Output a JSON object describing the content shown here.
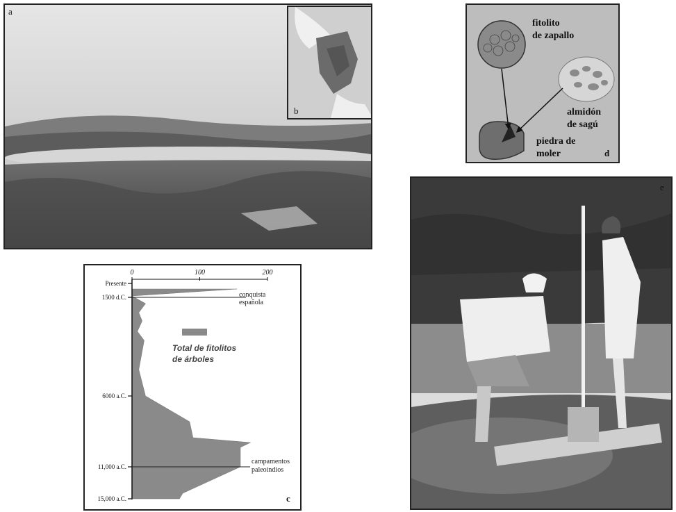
{
  "panel_a": {
    "letter": "a"
  },
  "panel_b": {
    "letter": "b"
  },
  "panel_d": {
    "letter": "d",
    "phytolith_label_line1": "fitolito",
    "phytolith_label_line2": "de zapallo",
    "starch_label_line1": "almidón",
    "starch_label_line2": "de sagú",
    "stone_label_line1": "piedra de",
    "stone_label_line2": "moler"
  },
  "panel_e": {
    "letter": "e"
  },
  "panel_c": {
    "letter": "c",
    "legend": "Total de fitolitos de árboles",
    "legend_line1": "Total de fitolitos",
    "legend_line2": "de árboles",
    "annotation_top_line1": "conquista",
    "annotation_top_line2": "española",
    "annotation_bottom_line1": "campamentos",
    "annotation_bottom_line2": "paleoindios"
  },
  "chart_data": {
    "type": "area",
    "title": "",
    "legend": [
      "Total de fitolitos de árboles"
    ],
    "x_ticks": [
      0,
      100,
      200
    ],
    "xlim": [
      0,
      200
    ],
    "y_ticks": [
      "Presente",
      "1500 d.C.",
      "6000 a.C.",
      "11,000 a.C.",
      "15,000 a.C."
    ],
    "orientation": "vertical-depth",
    "profile": [
      {
        "age": "Presente",
        "value": 155
      },
      {
        "age": "1500 d.C.",
        "value": 0
      },
      {
        "age": "",
        "value": 20
      },
      {
        "age": "",
        "value": 10
      },
      {
        "age": "",
        "value": 15
      },
      {
        "age": "",
        "value": 8
      },
      {
        "age": "",
        "value": 18
      },
      {
        "age": "",
        "value": 10
      },
      {
        "age": "6000 a.C.",
        "value": 20
      },
      {
        "age": "",
        "value": 85
      },
      {
        "age": "",
        "value": 90
      },
      {
        "age": "",
        "value": 175
      },
      {
        "age": "",
        "value": 160
      },
      {
        "age": "11,000 a.C.",
        "value": 160
      },
      {
        "age": "",
        "value": 75
      },
      {
        "age": "15,000 a.C.",
        "value": 70
      }
    ]
  }
}
